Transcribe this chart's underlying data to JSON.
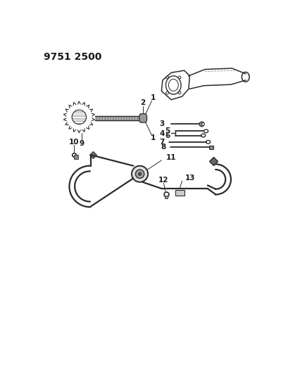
{
  "title": "9751 2500",
  "bg_color": "#ffffff",
  "line_color": "#2a2a2a",
  "label_color": "#1a1a1a",
  "label_fontsize": 7.5,
  "title_fontsize": 10,
  "figsize": [
    4.1,
    5.33
  ],
  "dpi": 100
}
